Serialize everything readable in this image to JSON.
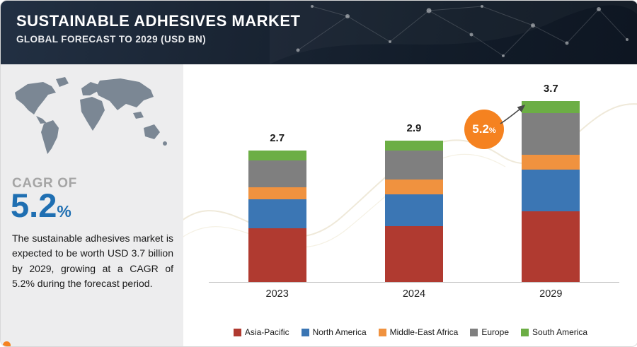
{
  "header": {
    "title": "SUSTAINABLE ADHESIVES MARKET",
    "subtitle": "GLOBAL FORECAST TO 2029 (USD BN)"
  },
  "sidebar": {
    "cagr_label": "CAGR OF",
    "cagr_value": "5.2",
    "cagr_unit": "%",
    "description": "The sustainable adhesives market is expected to be worth USD 3.7 billion by 2029, growing at a CAGR of 5.2% during the forecast period."
  },
  "badge": {
    "value": "5.2",
    "unit": "%",
    "color": "#f58220"
  },
  "colors": {
    "cagr_blue": "#1f6fb2",
    "header_navy": "#16202e",
    "sidebar_gray": "#ededee",
    "map_gray": "#7b8794"
  },
  "chart_data": {
    "type": "bar",
    "stacked": true,
    "title": "Sustainable Adhesives Market, Global Forecast to 2029 (USD BN)",
    "categories": [
      "2023",
      "2024",
      "2029"
    ],
    "totals": [
      2.7,
      2.9,
      3.7
    ],
    "series": [
      {
        "name": "Asia-Pacific",
        "color": "#b03a30",
        "values": [
          1.1,
          1.15,
          1.45
        ]
      },
      {
        "name": "North America",
        "color": "#3b76b4",
        "values": [
          0.6,
          0.65,
          0.85
        ]
      },
      {
        "name": "Middle-East Africa",
        "color": "#f0923f",
        "values": [
          0.25,
          0.3,
          0.3
        ]
      },
      {
        "name": "Europe",
        "color": "#7f7f7f",
        "values": [
          0.55,
          0.6,
          0.85
        ]
      },
      {
        "name": "South America",
        "color": "#6cae45",
        "values": [
          0.2,
          0.2,
          0.25
        ]
      }
    ],
    "unit": "USD BN",
    "ylim": [
      0,
      4
    ],
    "grid": false,
    "legend_position": "bottom",
    "annotation": "5.2% CAGR arrow pointing to 2029 bar"
  }
}
